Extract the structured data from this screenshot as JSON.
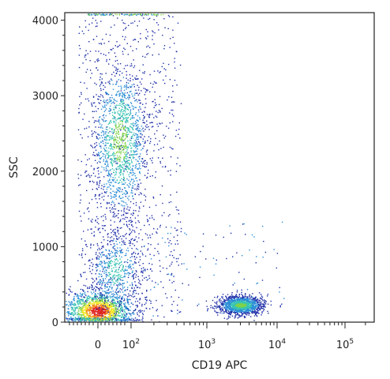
{
  "chart_data": {
    "type": "scatter",
    "title": "",
    "xlabel": "CD19 APC",
    "ylabel": "SSC",
    "x_scale": "biexponential",
    "y_scale": "linear",
    "ylim": [
      0,
      4100
    ],
    "y_ticks": [
      {
        "value": 0,
        "label": "0"
      },
      {
        "value": 1000,
        "label": "1000"
      },
      {
        "value": 2000,
        "label": "2000"
      },
      {
        "value": 3000,
        "label": "3000"
      },
      {
        "value": 4000,
        "label": "4000"
      }
    ],
    "x_ticks": [
      {
        "value": 0,
        "label": "0"
      },
      {
        "value": 100,
        "label": "10",
        "exp": "2"
      },
      {
        "value": 1000,
        "label": "10",
        "exp": "3"
      },
      {
        "value": 10000,
        "label": "10",
        "exp": "4"
      },
      {
        "value": 100000,
        "label": "10",
        "exp": "5"
      }
    ],
    "density_colors": [
      "#1f2fa8",
      "#2c8fd6",
      "#39c3b3",
      "#7fd24a",
      "#f2e51c",
      "#f28a1c",
      "#e0211b"
    ],
    "populations": [
      {
        "name": "",
        "x_center": 0,
        "y_center": 150,
        "density": "high",
        "x_spread": "wide",
        "y_spread": 150
      },
      {
        "name": "",
        "x_center": 20,
        "y_center": 2400,
        "density": "medium",
        "x_spread": "medium",
        "y_spread": 550
      },
      {
        "name": "",
        "x_center": 10,
        "y_center": 700,
        "density": "low",
        "x_spread": "medium",
        "y_spread": 300
      },
      {
        "name": "",
        "x_center": 3000,
        "y_center": 230,
        "density": "medium",
        "x_spread": "narrow",
        "y_spread": 60
      }
    ]
  }
}
